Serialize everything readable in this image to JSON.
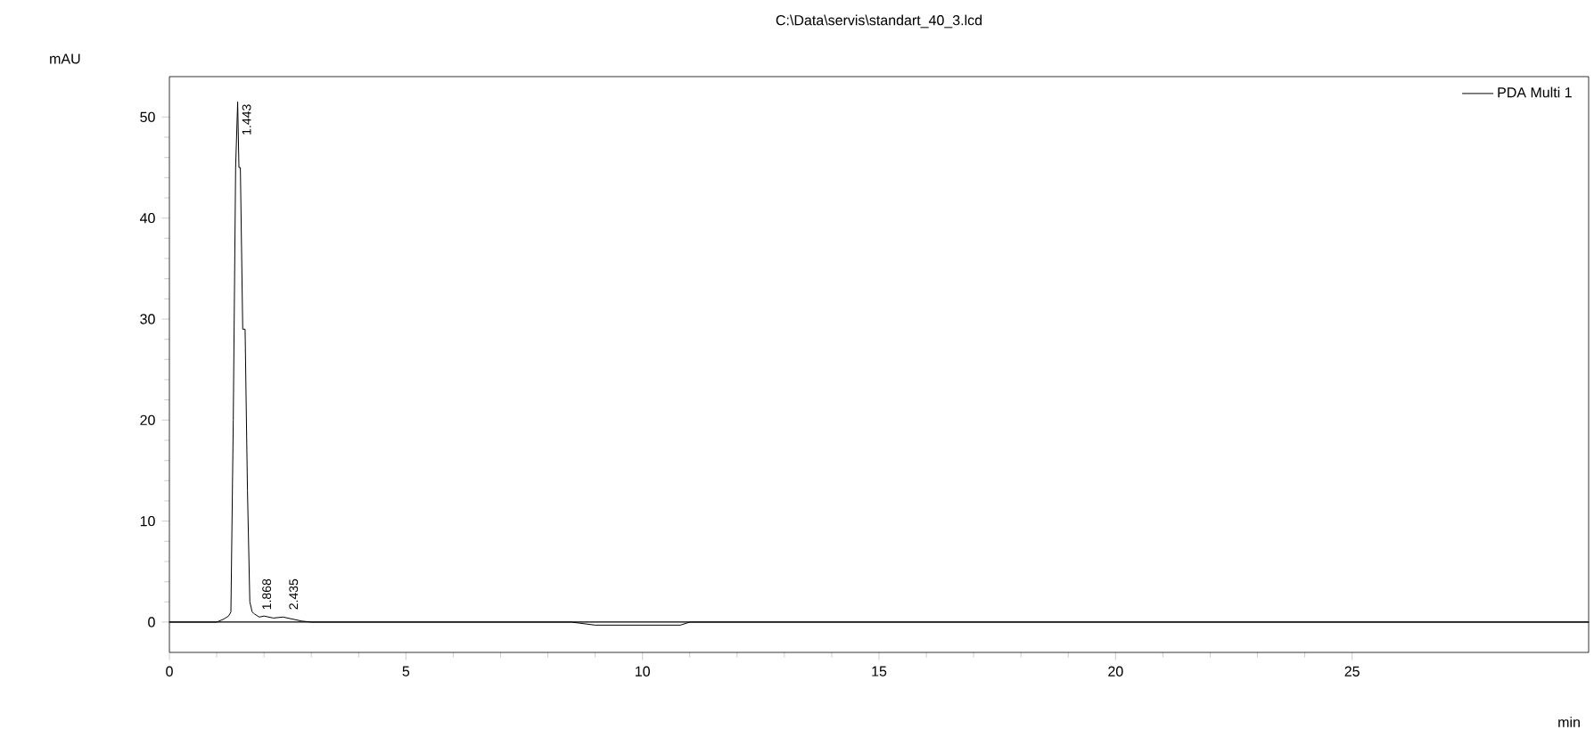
{
  "chart_data": {
    "type": "line",
    "title": "C:\\Data\\servis\\standart_40_3.lcd",
    "xlabel": "min",
    "ylabel": "mAU",
    "x": [
      0,
      1.0,
      1.15,
      1.25,
      1.3,
      1.35,
      1.4,
      1.443,
      1.47,
      1.5,
      1.55,
      1.6,
      1.65,
      1.7,
      1.75,
      1.8,
      1.9,
      2.0,
      2.2,
      2.4,
      2.6,
      2.8,
      3.0,
      8.5,
      9.0,
      10.0,
      10.8,
      11.0,
      30
    ],
    "series": [
      {
        "name": "PDA Multi 1",
        "color": "#000000",
        "values": [
          0,
          0,
          0.3,
          0.6,
          1.0,
          20,
          45,
          51.5,
          45,
          45,
          29,
          29,
          13,
          2,
          1,
          0.8,
          0.5,
          0.6,
          0.4,
          0.5,
          0.3,
          0.1,
          0,
          0,
          -0.3,
          -0.3,
          -0.3,
          0,
          0
        ]
      }
    ],
    "xlim": [
      0,
      30
    ],
    "ylim": [
      -3,
      54
    ],
    "xticks": [
      0,
      5,
      10,
      15,
      20,
      25
    ],
    "yticks": [
      0,
      10,
      20,
      30,
      40,
      50
    ],
    "ref_lines": [
      {
        "axis": "y",
        "value": 0,
        "color": "#000000"
      }
    ],
    "annotations": [
      {
        "text": "1.443",
        "x": 1.443,
        "y": 51.5
      },
      {
        "text": "1.868",
        "x": 1.868,
        "y": 1
      },
      {
        "text": "2.435",
        "x": 2.435,
        "y": 1
      }
    ],
    "legend": "top right",
    "grid": false,
    "marker": "none",
    "line_style": "solid"
  }
}
